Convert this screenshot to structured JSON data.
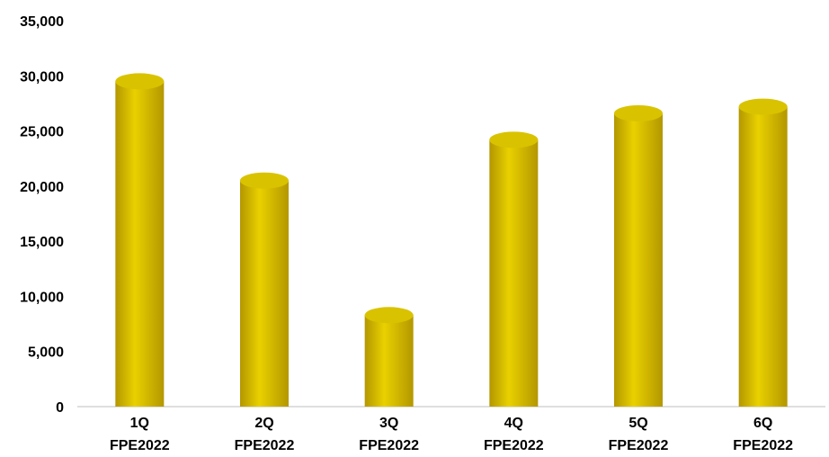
{
  "chart_data": {
    "type": "bar",
    "title": "",
    "xlabel": "",
    "ylabel": "",
    "categories": [
      [
        "1Q",
        "FPE2022"
      ],
      [
        "2Q",
        "FPE2022"
      ],
      [
        "3Q",
        "FPE2022"
      ],
      [
        "4Q",
        "FPE2022"
      ],
      [
        "5Q",
        "FPE2022"
      ],
      [
        "6Q",
        "FPE2022"
      ]
    ],
    "values": [
      29500,
      20500,
      8300,
      24200,
      26600,
      27200
    ],
    "ylim": [
      0,
      35000
    ],
    "yticks": [
      "0",
      "5,000",
      "10,000",
      "15,000",
      "20,000",
      "25,000",
      "30,000",
      "35,000"
    ],
    "grid": false,
    "legend": "none",
    "bar_style": "3d-cylinder",
    "colors": {
      "bar_dark": "#b39700",
      "bar_light": "#e9d100",
      "bar_top": "#d9c300",
      "axis": "#bfbfbf"
    }
  }
}
